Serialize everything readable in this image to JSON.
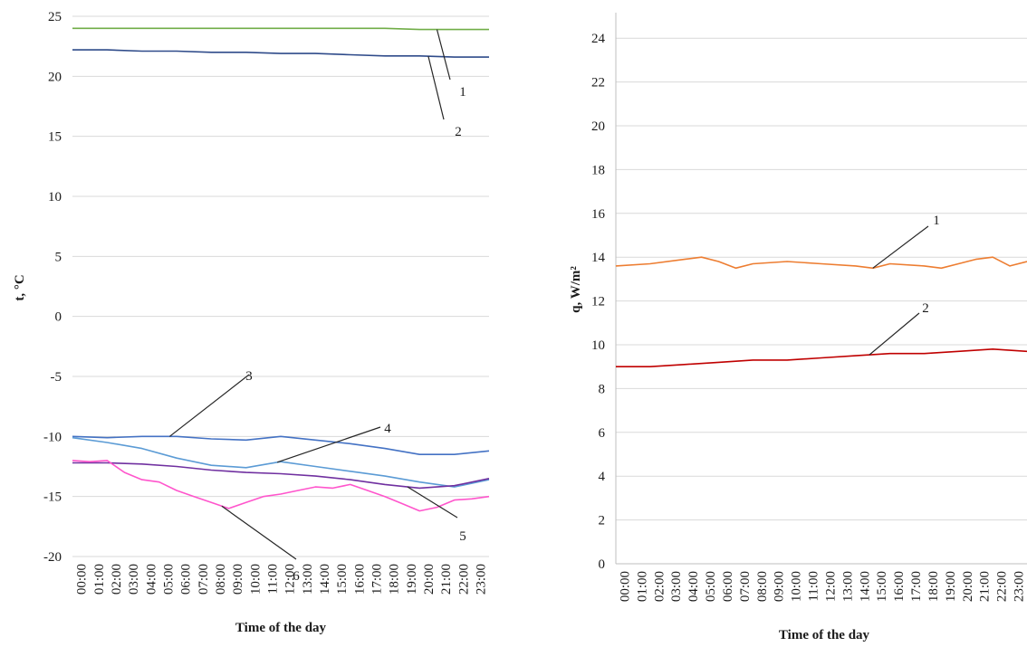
{
  "chart_data": [
    {
      "type": "line",
      "xlabel": "Time of the day",
      "ylabel": "t, °C",
      "ylim": [
        -20,
        25
      ],
      "yticks": [
        25,
        20,
        15,
        10,
        5,
        0,
        -5,
        -10,
        -15,
        -20
      ],
      "ytick_labels": [
        "25",
        "20",
        "15",
        "10",
        "5",
        "0",
        "-5",
        "-10",
        "-15",
        "-20"
      ],
      "x_tick_labels": [
        "00:00",
        "01:00",
        "02:00",
        "03:00",
        "04:00",
        "05:00",
        "06:00",
        "07:00",
        "08:00",
        "09:00",
        "10:00",
        "11:00",
        "12:00",
        "13:00",
        "14:00",
        "15:00",
        "16:00",
        "17:00",
        "18:00",
        "19:00",
        "20:00",
        "21:00",
        "22:00",
        "23:00"
      ],
      "grid": true,
      "legend": "none (series identified by numbered callouts)",
      "series": [
        {
          "name": "1",
          "color": "#70ad47",
          "x": [
            0,
            2,
            4,
            6,
            8,
            10,
            12,
            14,
            16,
            18,
            20,
            22,
            24
          ],
          "values": [
            24.0,
            24.0,
            24.0,
            24.0,
            24.0,
            24.0,
            24.0,
            24.0,
            24.0,
            24.0,
            23.9,
            23.9,
            23.9
          ]
        },
        {
          "name": "2",
          "color": "#2f4b8a",
          "x": [
            0,
            2,
            4,
            6,
            8,
            10,
            12,
            14,
            16,
            18,
            20,
            22,
            24
          ],
          "values": [
            22.2,
            22.2,
            22.1,
            22.1,
            22.0,
            22.0,
            21.9,
            21.9,
            21.8,
            21.7,
            21.7,
            21.6,
            21.6
          ]
        },
        {
          "name": "3",
          "color": "#4472c4",
          "x": [
            0,
            2,
            4,
            6,
            8,
            10,
            12,
            14,
            16,
            18,
            20,
            22,
            24
          ],
          "values": [
            -10.0,
            -10.1,
            -10.0,
            -10.0,
            -10.2,
            -10.3,
            -10.0,
            -10.3,
            -10.6,
            -11.0,
            -11.5,
            -11.5,
            -11.2
          ]
        },
        {
          "name": "4",
          "color": "#5b9bd5",
          "x": [
            0,
            2,
            4,
            6,
            8,
            10,
            12,
            14,
            16,
            18,
            20,
            22,
            24
          ],
          "values": [
            -10.1,
            -10.5,
            -11.0,
            -11.8,
            -12.4,
            -12.6,
            -12.1,
            -12.5,
            -12.9,
            -13.3,
            -13.8,
            -14.2,
            -13.6
          ]
        },
        {
          "name": "5",
          "color": "#7030a0",
          "x": [
            0,
            2,
            4,
            6,
            8,
            10,
            12,
            14,
            16,
            18,
            20,
            22,
            24
          ],
          "values": [
            -12.2,
            -12.2,
            -12.3,
            -12.5,
            -12.8,
            -13.0,
            -13.1,
            -13.3,
            -13.6,
            -14.0,
            -14.3,
            -14.1,
            -13.5
          ]
        },
        {
          "name": "6",
          "color": "#ff55cc",
          "x": [
            0,
            1,
            2,
            3,
            4,
            5,
            6,
            7,
            8,
            9,
            10,
            11,
            12,
            13,
            14,
            15,
            16,
            17,
            18,
            19,
            20,
            21,
            22,
            23,
            24
          ],
          "values": [
            -12.0,
            -12.1,
            -12.0,
            -13.0,
            -13.6,
            -13.8,
            -14.5,
            -15.0,
            -15.5,
            -16.0,
            -15.5,
            -15.0,
            -14.8,
            -14.5,
            -14.2,
            -14.3,
            -14.0,
            -14.5,
            -15.0,
            -15.6,
            -16.2,
            -15.9,
            -15.3,
            -15.2,
            -15.0
          ]
        }
      ]
    },
    {
      "type": "line",
      "xlabel": "Time of the day",
      "ylabel": "q, W/m²",
      "ylim": [
        0,
        25
      ],
      "yticks": [
        0,
        2,
        4,
        6,
        8,
        10,
        12,
        14,
        16,
        18,
        20,
        22,
        24
      ],
      "ytick_labels": [
        "0",
        "2",
        "4",
        "6",
        "8",
        "10",
        "12",
        "14",
        "16",
        "18",
        "20",
        "22",
        "24"
      ],
      "x_tick_labels": [
        "00:00",
        "01:00",
        "02:00",
        "03:00",
        "04:00",
        "05:00",
        "06:00",
        "07:00",
        "08:00",
        "09:00",
        "10:00",
        "11:00",
        "12:00",
        "13:00",
        "14:00",
        "15:00",
        "16:00",
        "17:00",
        "18:00",
        "19:00",
        "20:00",
        "21:00",
        "22:00",
        "23:00"
      ],
      "grid": true,
      "legend": "none (series identified by numbered callouts)",
      "series": [
        {
          "name": "1",
          "color": "#ed7d31",
          "x": [
            0,
            2,
            4,
            5,
            6,
            7,
            8,
            10,
            12,
            14,
            15,
            16,
            18,
            19,
            20,
            21,
            22,
            23,
            24
          ],
          "values": [
            13.6,
            13.7,
            13.9,
            14.0,
            13.8,
            13.5,
            13.7,
            13.8,
            13.7,
            13.6,
            13.5,
            13.7,
            13.6,
            13.5,
            13.7,
            13.9,
            14.0,
            13.6,
            13.8
          ]
        },
        {
          "name": "2",
          "color": "#c00000",
          "x": [
            0,
            2,
            4,
            6,
            8,
            10,
            12,
            14,
            16,
            18,
            20,
            22,
            24
          ],
          "values": [
            9.0,
            9.0,
            9.1,
            9.2,
            9.3,
            9.3,
            9.4,
            9.5,
            9.6,
            9.6,
            9.7,
            9.8,
            9.7
          ]
        }
      ]
    }
  ]
}
